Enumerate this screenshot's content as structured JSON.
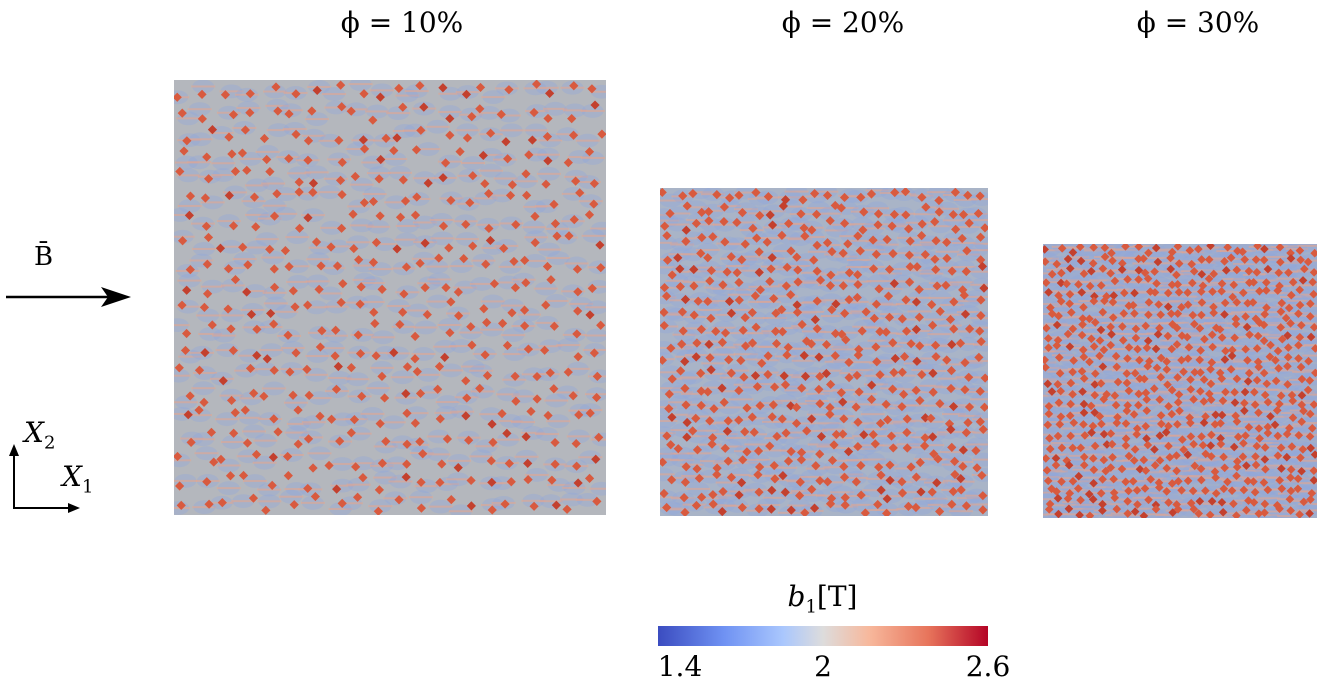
{
  "titles": [
    "ϕ = 10%",
    "ϕ = 20%",
    "ϕ = 30%"
  ],
  "panels": [
    {
      "name": "phi-10-percent",
      "rows": 20,
      "cols": 20
    },
    {
      "name": "phi-20-percent",
      "rows": 22,
      "cols": 22
    },
    {
      "name": "phi-30-percent",
      "rows": 25,
      "cols": 25
    }
  ],
  "field_label": "B̄",
  "axes": {
    "x_label": "X",
    "x_sub": "1",
    "y_label": "X",
    "y_sub": "2"
  },
  "colorbar": {
    "symbol": "b",
    "sub": "1",
    "unit": "[T]",
    "min": "1.4",
    "mid": "2",
    "max": "2.6",
    "colors": [
      "#3b4cc0",
      "#dddcdc",
      "#b40426"
    ]
  }
}
